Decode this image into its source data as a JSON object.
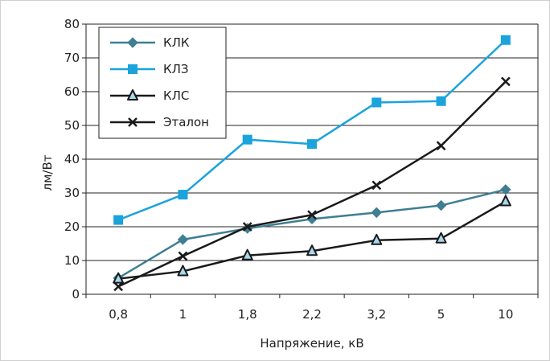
{
  "chart_data": {
    "type": "line",
    "title": "",
    "xlabel": "Напряжение, кВ",
    "ylabel": "лм/Вт",
    "categories": [
      "0,8",
      "1",
      "1,8",
      "2,2",
      "3,2",
      "5",
      "10"
    ],
    "ylim": [
      0,
      80
    ],
    "yticks": [
      "0",
      "10",
      "20",
      "30",
      "40",
      "50",
      "60",
      "70",
      "80"
    ],
    "grid": "horizontal",
    "legend_position": "top-left",
    "series": [
      {
        "name": "КЛК",
        "values": [
          4.8,
          16.2,
          19.5,
          22.3,
          24.2,
          26.3,
          31.0
        ],
        "color": "#3f7e93",
        "marker": "diamond"
      },
      {
        "name": "КЛЗ",
        "values": [
          22.0,
          29.5,
          45.8,
          44.5,
          56.8,
          57.2,
          75.3
        ],
        "color": "#1aa3dc",
        "marker": "square"
      },
      {
        "name": "КЛС",
        "values": [
          4.6,
          6.8,
          11.5,
          12.8,
          16.0,
          16.5,
          27.5
        ],
        "color": "#1a1a1a",
        "marker": "triangle"
      },
      {
        "name": "Эталон",
        "values": [
          2.3,
          11.3,
          20.0,
          23.5,
          32.3,
          44.0,
          63.0
        ],
        "color": "#1a1a1a",
        "marker": "x"
      }
    ]
  }
}
